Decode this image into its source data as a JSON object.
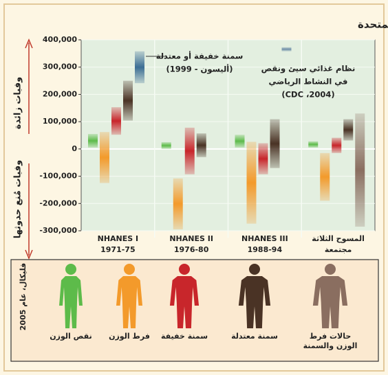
{
  "chart_data": {
    "type": "range-bar",
    "title": "معدل الوفيات السنوي المرتبط بالوزن في الولايات المتحدة",
    "y_label_upper": "وفيات زائدة",
    "y_label_lower": "وفيات مُنع حدوثها",
    "categories": [
      [
        "NHANES I",
        "1971-75"
      ],
      [
        "NHANES II",
        "1976-80"
      ],
      [
        "NHANES III",
        "1988-94"
      ],
      [
        "المسوح الثلاثة",
        "مجتمعة"
      ]
    ],
    "ylim": [
      -300000,
      400000
    ],
    "yticks": [
      {
        "value": 400000,
        "label": "400,000"
      },
      {
        "value": 300000,
        "label": "300,000"
      },
      {
        "value": 200000,
        "label": "200,000"
      },
      {
        "value": 100000,
        "label": "100,000"
      },
      0,
      {
        "value": -100000,
        "label": "-100,000"
      },
      {
        "value": -200000,
        "label": "-200,000"
      },
      {
        "value": -300000,
        "label": "-300,000"
      }
    ],
    "grid": true,
    "series": [
      {
        "name": "نقص الوزن",
        "color": "#5dbb4a",
        "values": [
          [
            5000,
            55000
          ],
          [
            0,
            25000
          ],
          [
            5000,
            52000
          ],
          [
            5000,
            28000
          ]
        ]
      },
      {
        "name": "فرط الوزن",
        "color": "#f39a2b",
        "values": [
          [
            -125000,
            62000
          ],
          [
            -295000,
            -108000
          ],
          [
            -274000,
            26000
          ],
          [
            -190000,
            -15000
          ]
        ]
      },
      {
        "name": "سمنة خفيفة",
        "color": "#c8262b",
        "values": [
          [
            52000,
            153000
          ],
          [
            -93000,
            78000
          ],
          [
            -93000,
            21000
          ],
          [
            -15000,
            41000
          ]
        ]
      },
      {
        "name": "سمنة معتدلة",
        "color": "#4a3325",
        "values": [
          [
            104000,
            250000
          ],
          [
            -30000,
            57000
          ],
          [
            -70000,
            109000
          ],
          [
            31000,
            109000
          ]
        ]
      },
      {
        "name": "حالات فرط الوزن والسمنة",
        "color": "#8a6e60",
        "values": [
          null,
          null,
          null,
          [
            -285000,
            130000
          ]
        ]
      }
    ],
    "annotations": [
      {
        "text": [
          "سمنة خفيفة أو معتدلة",
          "(أليسون - 1999)"
        ],
        "range": [
          241000,
          358000
        ],
        "color": "#3c6e94"
      },
      {
        "text": [
          "نظام غذائي سيئ ونقص",
          "في النشاط الرياضي",
          "(CDC ،2004)"
        ],
        "range": [
          358000,
          373000
        ],
        "color": "#6e8ea8"
      }
    ],
    "source": "فليكال، عام 2005"
  }
}
